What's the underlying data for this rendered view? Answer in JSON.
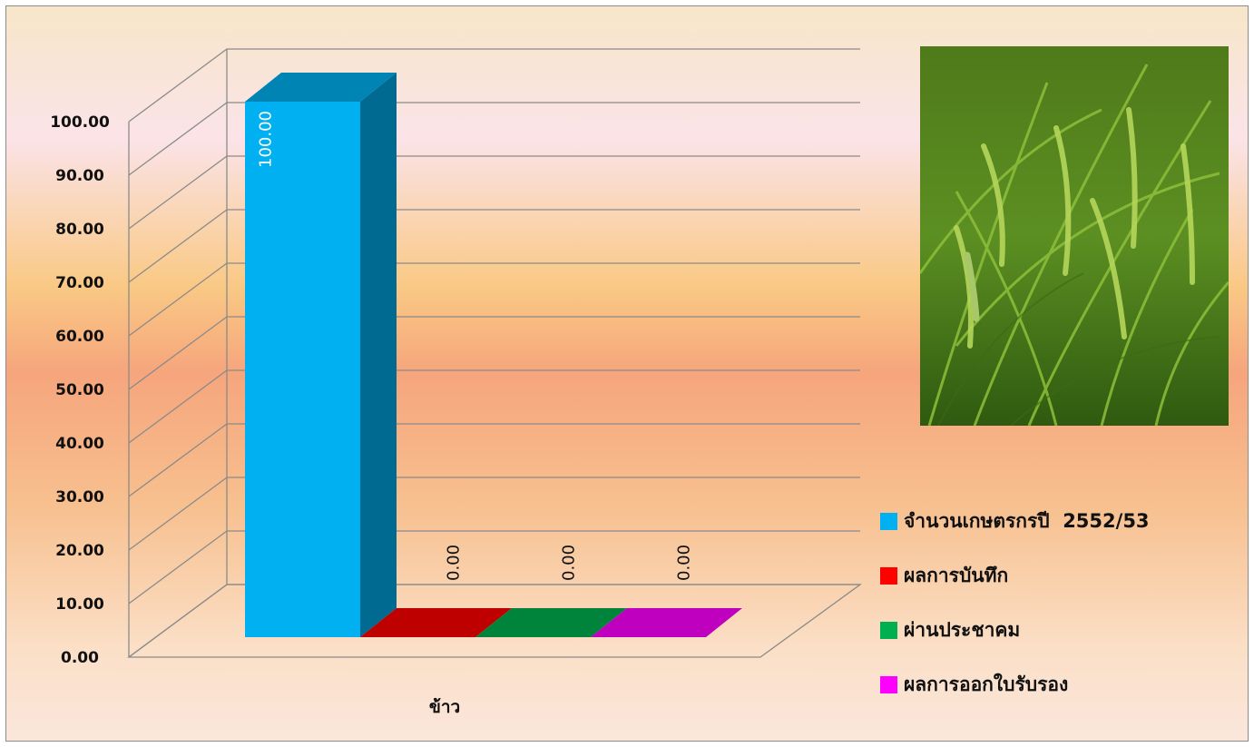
{
  "chart_data": {
    "type": "bar",
    "categories": [
      "ข้าว"
    ],
    "series": [
      {
        "name": "จำนวนเกษตรกรปี  2552/53",
        "values": [
          100.0
        ],
        "color": "#00b0f0"
      },
      {
        "name": "ผลการบันทึก",
        "values": [
          0.0
        ],
        "color": "#ff0000"
      },
      {
        "name": "ผ่านประชาคม",
        "values": [
          0.0
        ],
        "color": "#00b050"
      },
      {
        "name": "ผลการออกใบรับรอง",
        "values": [
          0.0
        ],
        "color": "#ff00ff"
      }
    ],
    "data_labels": [
      "100.00",
      "0.00",
      "0.00",
      "0.00"
    ],
    "y_ticks": [
      "0.00",
      "10.00",
      "20.00",
      "30.00",
      "40.00",
      "50.00",
      "60.00",
      "70.00",
      "80.00",
      "90.00",
      "100.00"
    ],
    "ylim": [
      0,
      100
    ],
    "grid": true,
    "three_d": true,
    "legend_position": "right",
    "title": "",
    "xlabel": "",
    "ylabel": ""
  },
  "photo": {
    "icon": "rice-plant-photo"
  }
}
